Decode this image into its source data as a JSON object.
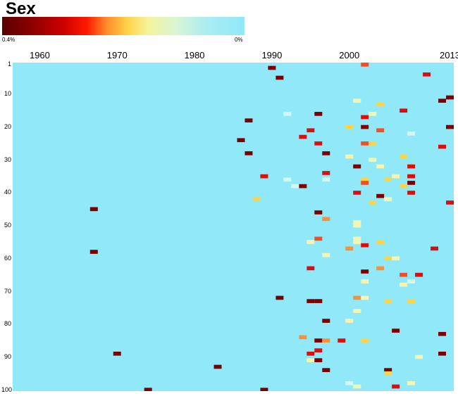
{
  "chart_data": {
    "type": "heatmap",
    "title": "Sex",
    "colorbar": {
      "min_label": "0.4%",
      "max_label": "0%"
    },
    "x_ticks": [
      "1960",
      "1970",
      "1980",
      "1990",
      "2000",
      "2013"
    ],
    "x_tick_years": [
      1960,
      1970,
      1980,
      1990,
      2000,
      2013
    ],
    "x_range": [
      1957,
      2013
    ],
    "y_ticks": [
      "1",
      "10",
      "20",
      "30",
      "40",
      "50",
      "60",
      "70",
      "80",
      "90",
      "100"
    ],
    "y_tick_values": [
      1,
      10,
      20,
      30,
      40,
      50,
      60,
      70,
      80,
      90,
      100
    ],
    "y_range": [
      1,
      100
    ],
    "background_color": "#90e8f8",
    "palette": {
      "maroon": "#7a0000",
      "red": "#d80f0f",
      "red_orange": "#f04e28",
      "orange": "#f5913a",
      "yellow": "#f7d44c",
      "pale_yellow": "#f4f5b2",
      "pale_cyan": "#d6f6f2"
    },
    "cells": [
      {
        "year": 1990,
        "rank": 2,
        "c": "maroon"
      },
      {
        "year": 1991,
        "rank": 5,
        "c": "maroon"
      },
      {
        "year": 2002,
        "rank": 1,
        "c": "red_orange"
      },
      {
        "year": 2010,
        "rank": 4,
        "c": "red"
      },
      {
        "year": 2012,
        "rank": 12,
        "c": "maroon"
      },
      {
        "year": 2013,
        "rank": 11,
        "c": "maroon"
      },
      {
        "year": 2001,
        "rank": 12,
        "c": "pale_yellow"
      },
      {
        "year": 2004,
        "rank": 13,
        "c": "yellow"
      },
      {
        "year": 1992,
        "rank": 16,
        "c": "pale_cyan"
      },
      {
        "year": 1996,
        "rank": 16,
        "c": "maroon"
      },
      {
        "year": 2003,
        "rank": 16,
        "c": "pale_yellow"
      },
      {
        "year": 2007,
        "rank": 15,
        "c": "red"
      },
      {
        "year": 2002,
        "rank": 17,
        "c": "red"
      },
      {
        "year": 1987,
        "rank": 18,
        "c": "maroon"
      },
      {
        "year": 2000,
        "rank": 20,
        "c": "yellow"
      },
      {
        "year": 2002,
        "rank": 20,
        "c": "maroon"
      },
      {
        "year": 2004,
        "rank": 21,
        "c": "red_orange"
      },
      {
        "year": 1995,
        "rank": 21,
        "c": "red"
      },
      {
        "year": 2008,
        "rank": 22,
        "c": "pale_cyan"
      },
      {
        "year": 2013,
        "rank": 20,
        "c": "maroon"
      },
      {
        "year": 1994,
        "rank": 23,
        "c": "red"
      },
      {
        "year": 1986,
        "rank": 24,
        "c": "maroon"
      },
      {
        "year": 1996,
        "rank": 25,
        "c": "red"
      },
      {
        "year": 2002,
        "rank": 25,
        "c": "red_orange"
      },
      {
        "year": 2003,
        "rank": 25,
        "c": "yellow"
      },
      {
        "year": 2012,
        "rank": 26,
        "c": "red"
      },
      {
        "year": 1987,
        "rank": 28,
        "c": "maroon"
      },
      {
        "year": 1997,
        "rank": 28,
        "c": "maroon"
      },
      {
        "year": 2000,
        "rank": 29,
        "c": "pale_yellow"
      },
      {
        "year": 2003,
        "rank": 30,
        "c": "pale_yellow"
      },
      {
        "year": 2007,
        "rank": 29,
        "c": "yellow"
      },
      {
        "year": 2001,
        "rank": 32,
        "c": "maroon"
      },
      {
        "year": 2004,
        "rank": 32,
        "c": "pale_yellow"
      },
      {
        "year": 2008,
        "rank": 32,
        "c": "red"
      },
      {
        "year": 1997,
        "rank": 34,
        "c": "red"
      },
      {
        "year": 1989,
        "rank": 35,
        "c": "red"
      },
      {
        "year": 2006,
        "rank": 35,
        "c": "pale_yellow"
      },
      {
        "year": 2008,
        "rank": 35,
        "c": "red"
      },
      {
        "year": 1992,
        "rank": 36,
        "c": "pale_cyan"
      },
      {
        "year": 1997,
        "rank": 36,
        "c": "pale_cyan"
      },
      {
        "year": 2002,
        "rank": 36,
        "c": "yellow"
      },
      {
        "year": 2002,
        "rank": 37,
        "c": "red_orange"
      },
      {
        "year": 2005,
        "rank": 36,
        "c": "yellow"
      },
      {
        "year": 2008,
        "rank": 37,
        "c": "maroon"
      },
      {
        "year": 1993,
        "rank": 38,
        "c": "pale_cyan"
      },
      {
        "year": 1994,
        "rank": 38,
        "c": "maroon"
      },
      {
        "year": 2007,
        "rank": 38,
        "c": "yellow"
      },
      {
        "year": 2001,
        "rank": 40,
        "c": "red"
      },
      {
        "year": 2004,
        "rank": 41,
        "c": "maroon"
      },
      {
        "year": 2008,
        "rank": 40,
        "c": "red"
      },
      {
        "year": 1988,
        "rank": 42,
        "c": "yellow"
      },
      {
        "year": 2003,
        "rank": 43,
        "c": "yellow"
      },
      {
        "year": 2005,
        "rank": 42,
        "c": "pale_yellow"
      },
      {
        "year": 2013,
        "rank": 43,
        "c": "red"
      },
      {
        "year": 1967,
        "rank": 45,
        "c": "maroon"
      },
      {
        "year": 1996,
        "rank": 46,
        "c": "maroon"
      },
      {
        "year": 1997,
        "rank": 48,
        "c": "orange"
      },
      {
        "year": 2001,
        "rank": 49,
        "c": "pale_yellow"
      },
      {
        "year": 2001,
        "rank": 50,
        "c": "pale_yellow"
      },
      {
        "year": 1996,
        "rank": 54,
        "c": "red_orange"
      },
      {
        "year": 1995,
        "rank": 55,
        "c": "pale_yellow"
      },
      {
        "year": 2001,
        "rank": 54,
        "c": "pale_yellow"
      },
      {
        "year": 2001,
        "rank": 55,
        "c": "pale_yellow"
      },
      {
        "year": 2004,
        "rank": 55,
        "c": "yellow"
      },
      {
        "year": 2002,
        "rank": 56,
        "c": "red"
      },
      {
        "year": 2000,
        "rank": 57,
        "c": "orange"
      },
      {
        "year": 2011,
        "rank": 57,
        "c": "red"
      },
      {
        "year": 1967,
        "rank": 58,
        "c": "maroon"
      },
      {
        "year": 1997,
        "rank": 59,
        "c": "pale_yellow"
      },
      {
        "year": 2005,
        "rank": 60,
        "c": "yellow"
      },
      {
        "year": 2006,
        "rank": 60,
        "c": "pale_yellow"
      },
      {
        "year": 2004,
        "rank": 63,
        "c": "orange"
      },
      {
        "year": 1995,
        "rank": 63,
        "c": "red"
      },
      {
        "year": 2002,
        "rank": 64,
        "c": "maroon"
      },
      {
        "year": 2007,
        "rank": 65,
        "c": "red_orange"
      },
      {
        "year": 2009,
        "rank": 65,
        "c": "red"
      },
      {
        "year": 2002,
        "rank": 67,
        "c": "pale_yellow"
      },
      {
        "year": 2007,
        "rank": 68,
        "c": "pale_yellow"
      },
      {
        "year": 2008,
        "rank": 67,
        "c": "pale_cyan"
      },
      {
        "year": 1991,
        "rank": 72,
        "c": "maroon"
      },
      {
        "year": 1995,
        "rank": 73,
        "c": "maroon"
      },
      {
        "year": 1996,
        "rank": 73,
        "c": "maroon"
      },
      {
        "year": 2001,
        "rank": 72,
        "c": "orange"
      },
      {
        "year": 2002,
        "rank": 72,
        "c": "pale_yellow"
      },
      {
        "year": 2005,
        "rank": 73,
        "c": "yellow"
      },
      {
        "year": 2008,
        "rank": 73,
        "c": "yellow"
      },
      {
        "year": 2001,
        "rank": 76,
        "c": "pale_yellow"
      },
      {
        "year": 1997,
        "rank": 79,
        "c": "maroon"
      },
      {
        "year": 2000,
        "rank": 79,
        "c": "pale_yellow"
      },
      {
        "year": 2006,
        "rank": 82,
        "c": "maroon"
      },
      {
        "year": 2012,
        "rank": 83,
        "c": "maroon"
      },
      {
        "year": 1994,
        "rank": 84,
        "c": "orange"
      },
      {
        "year": 1996,
        "rank": 85,
        "c": "maroon"
      },
      {
        "year": 1997,
        "rank": 85,
        "c": "orange"
      },
      {
        "year": 1999,
        "rank": 85,
        "c": "red"
      },
      {
        "year": 2002,
        "rank": 85,
        "c": "yellow"
      },
      {
        "year": 1996,
        "rank": 88,
        "c": "red"
      },
      {
        "year": 1995,
        "rank": 89,
        "c": "red"
      },
      {
        "year": 2012,
        "rank": 89,
        "c": "maroon"
      },
      {
        "year": 1970,
        "rank": 89,
        "c": "maroon"
      },
      {
        "year": 1995,
        "rank": 91,
        "c": "pale_yellow"
      },
      {
        "year": 1996,
        "rank": 91,
        "c": "maroon"
      },
      {
        "year": 2009,
        "rank": 90,
        "c": "pale_yellow"
      },
      {
        "year": 1983,
        "rank": 93,
        "c": "maroon"
      },
      {
        "year": 1997,
        "rank": 94,
        "c": "maroon"
      },
      {
        "year": 2005,
        "rank": 94,
        "c": "maroon"
      },
      {
        "year": 2005,
        "rank": 95,
        "c": "yellow"
      },
      {
        "year": 2000,
        "rank": 98,
        "c": "pale_cyan"
      },
      {
        "year": 2001,
        "rank": 99,
        "c": "pale_yellow"
      },
      {
        "year": 2008,
        "rank": 98,
        "c": "pale_yellow"
      },
      {
        "year": 2006,
        "rank": 99,
        "c": "red"
      },
      {
        "year": 1974,
        "rank": 100,
        "c": "maroon"
      },
      {
        "year": 1989,
        "rank": 100,
        "c": "maroon"
      }
    ]
  }
}
